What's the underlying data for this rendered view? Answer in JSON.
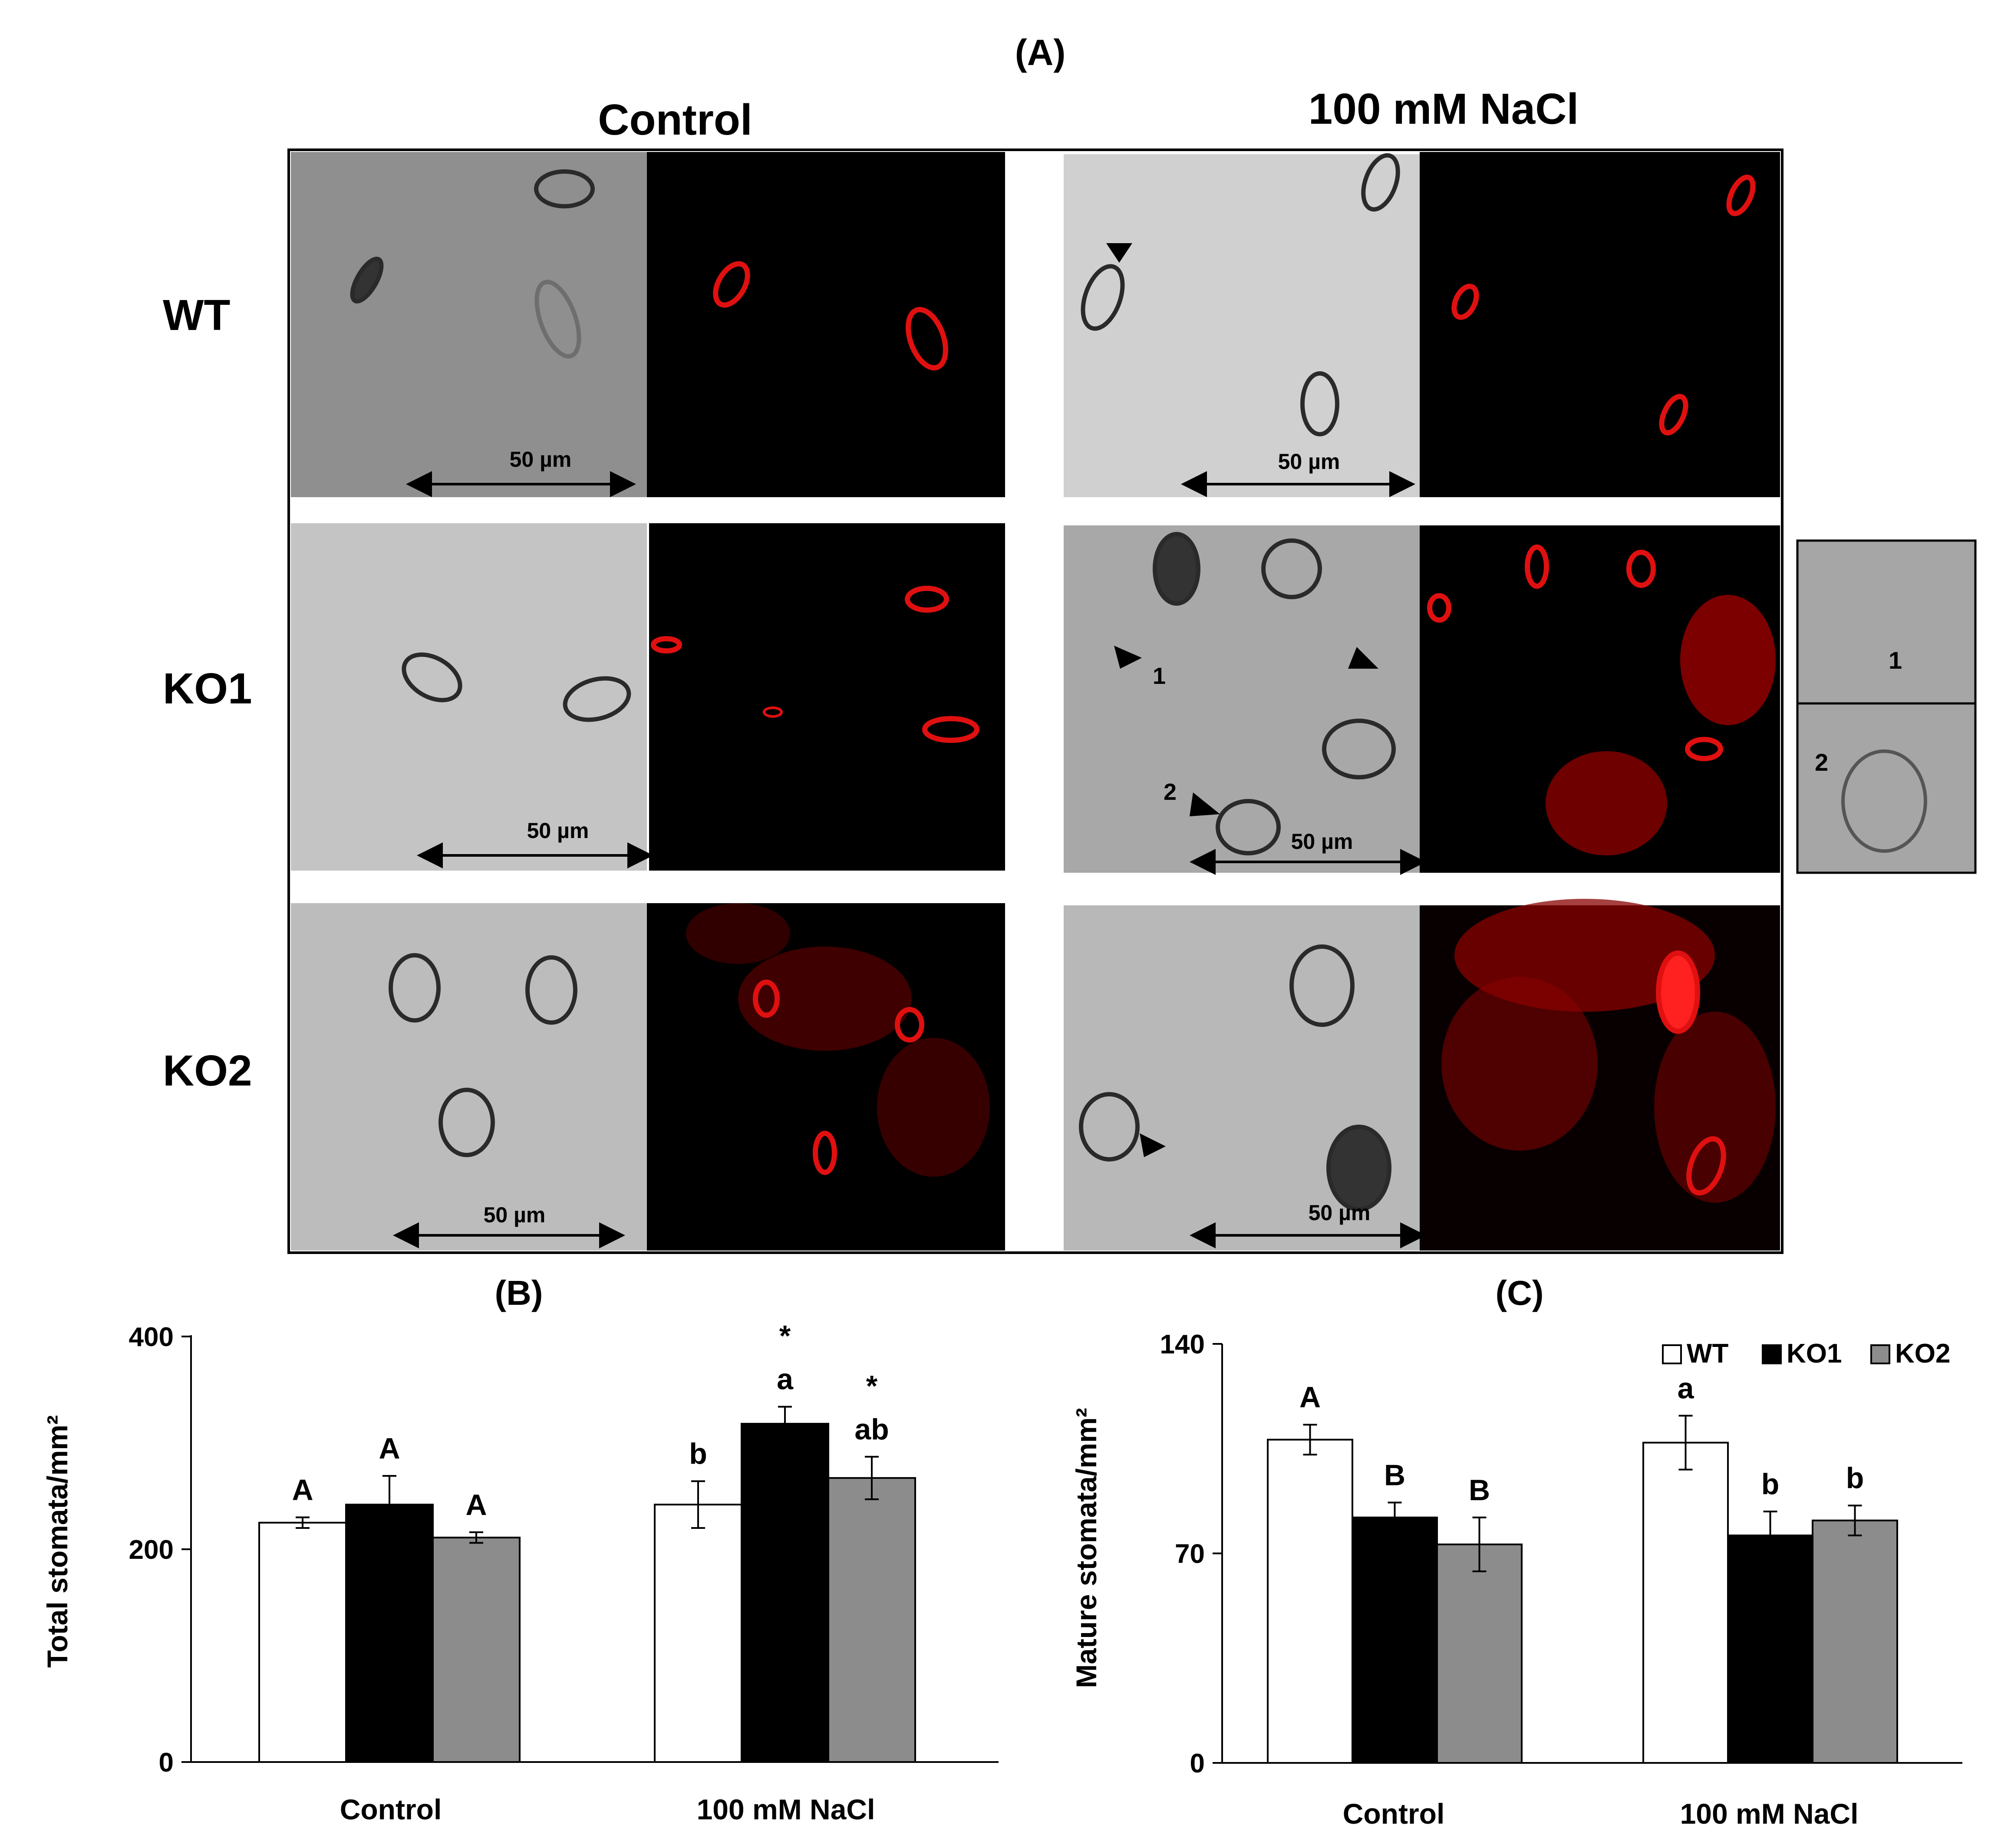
{
  "figure": {
    "panel_a_label": "(A)",
    "panel_b_label": "(B)",
    "panel_c_label": "(C)",
    "column_headers": [
      "Control",
      "100 mM NaCl"
    ],
    "row_labels": [
      "WT",
      "KO1",
      "KO2"
    ],
    "scale_bar_label": "50 µm",
    "inset_labels": [
      "1",
      "2"
    ],
    "marker_labels": [
      "1",
      "2"
    ]
  },
  "chart_data": [
    {
      "type": "bar",
      "panel": "(B)",
      "title": "",
      "xlabel": "",
      "ylabel": "Total stomata/mm²",
      "ylim": [
        0,
        400
      ],
      "yticks": [
        0,
        200,
        400
      ],
      "categories": [
        "Control",
        "100 mM NaCl"
      ],
      "series": [
        {
          "name": "WT",
          "values": [
            225,
            242
          ],
          "errors": [
            5,
            22
          ],
          "letters": [
            "A",
            "b"
          ],
          "stars": [
            "",
            ""
          ],
          "color": "#ffffff"
        },
        {
          "name": "KO1",
          "values": [
            242,
            318
          ],
          "errors": [
            27,
            16
          ],
          "letters": [
            "A",
            "a"
          ],
          "stars": [
            "",
            "*"
          ],
          "color": "#000000"
        },
        {
          "name": "KO2",
          "values": [
            211,
            267
          ],
          "errors": [
            5,
            20
          ],
          "letters": [
            "A",
            "ab"
          ],
          "stars": [
            "",
            "*"
          ],
          "color": "#8c8c8c"
        }
      ],
      "legend": false,
      "grid": false
    },
    {
      "type": "bar",
      "panel": "(C)",
      "title": "",
      "xlabel": "",
      "ylabel": "Mature stomata/mm²",
      "ylim": [
        0,
        140
      ],
      "yticks": [
        0,
        70,
        140
      ],
      "categories": [
        "Control",
        "100 mM NaCl"
      ],
      "series": [
        {
          "name": "WT",
          "values": [
            108,
            107
          ],
          "errors": [
            5,
            9
          ],
          "letters": [
            "A",
            "a"
          ],
          "stars": [
            "",
            ""
          ],
          "color": "#ffffff"
        },
        {
          "name": "KO1",
          "values": [
            82,
            76
          ],
          "errors": [
            5,
            8
          ],
          "letters": [
            "B",
            "b"
          ],
          "stars": [
            "",
            ""
          ],
          "color": "#000000"
        },
        {
          "name": "KO2",
          "values": [
            73,
            81
          ],
          "errors": [
            9,
            5
          ],
          "letters": [
            "B",
            "b"
          ],
          "stars": [
            "",
            ""
          ],
          "color": "#8c8c8c"
        }
      ],
      "legend": true,
      "legend_position": "top-right",
      "grid": false
    }
  ]
}
